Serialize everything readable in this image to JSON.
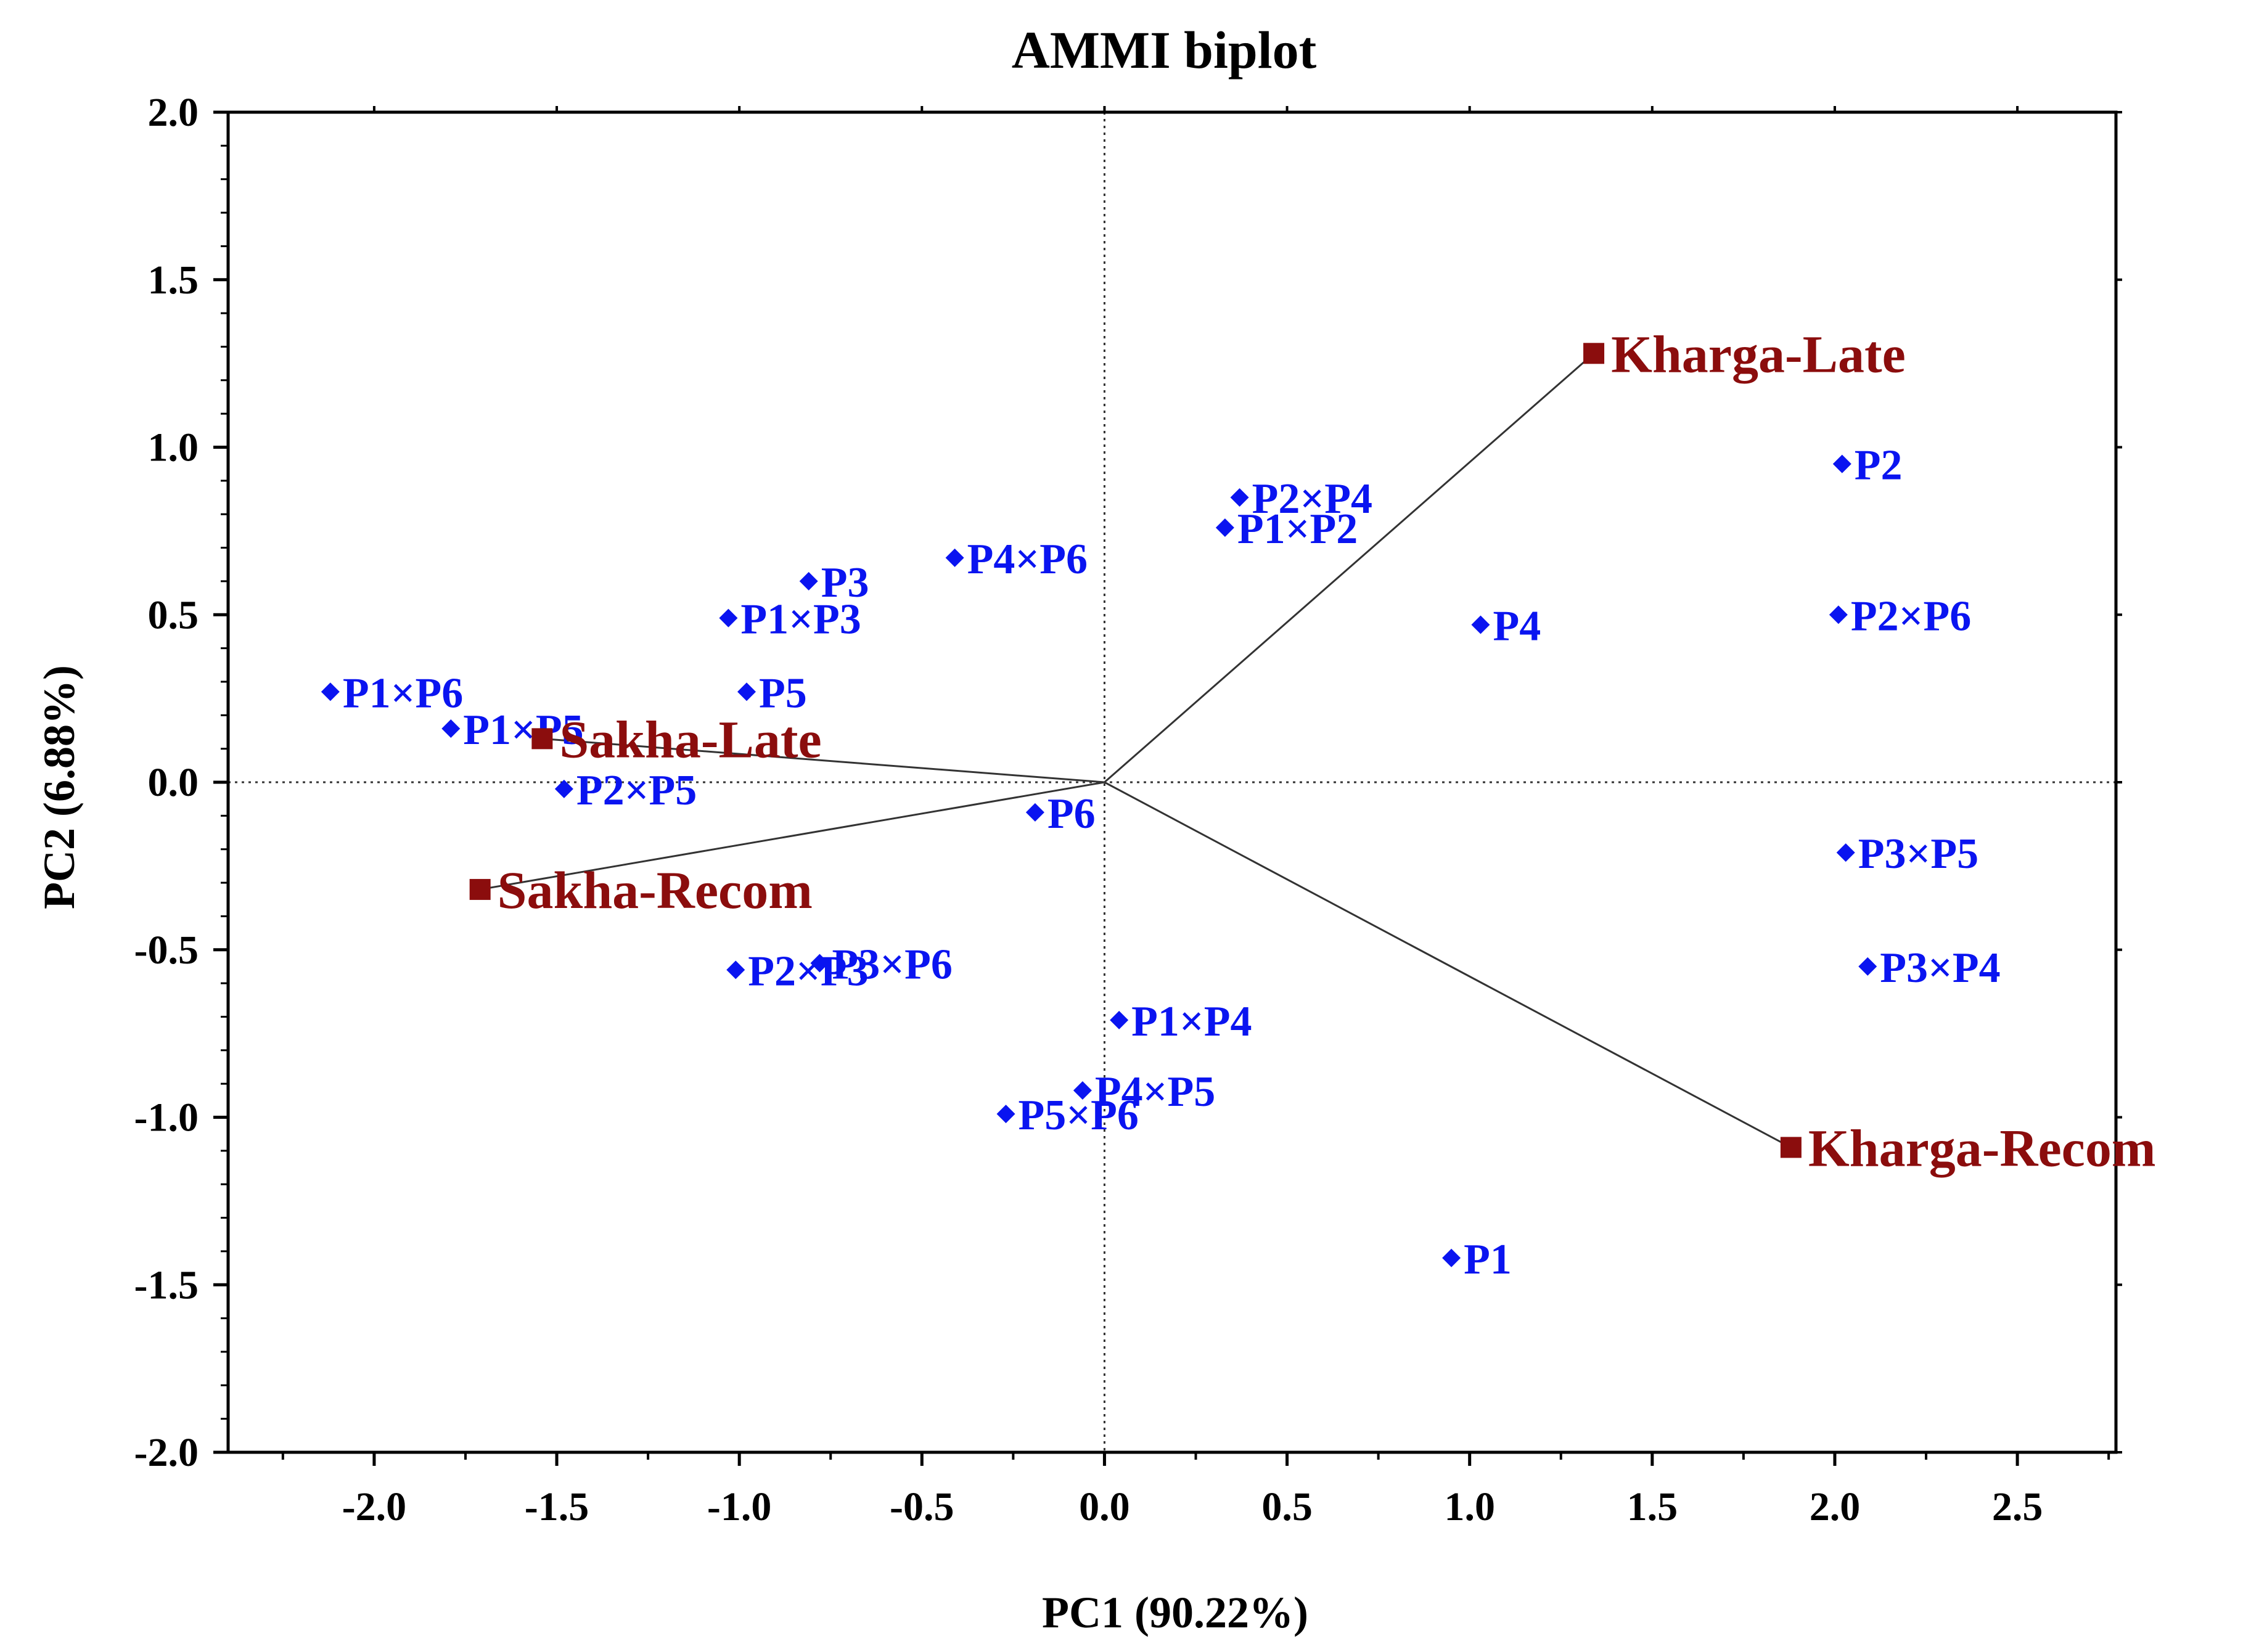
{
  "chart_data": {
    "type": "scatter",
    "title": "AMMI biplot",
    "xlabel": "PC1 (90.22%)",
    "ylabel": "PC2 (6.88%)",
    "xlim": [
      -2.4,
      2.77
    ],
    "ylim": [
      -2.0,
      2.0
    ],
    "x_ticks": [
      {
        "value": -2.0,
        "label": "-2.0"
      },
      {
        "value": -1.5,
        "label": "-1.5"
      },
      {
        "value": -1.0,
        "label": "-1.0"
      },
      {
        "value": -0.5,
        "label": "-0.5"
      },
      {
        "value": 0.0,
        "label": "0.0"
      },
      {
        "value": 0.5,
        "label": "0.5"
      },
      {
        "value": 1.0,
        "label": "1.0"
      },
      {
        "value": 1.5,
        "label": "1.5"
      },
      {
        "value": 2.0,
        "label": "2.0"
      },
      {
        "value": 2.5,
        "label": "2.5"
      }
    ],
    "y_ticks": [
      {
        "value": 2.0,
        "label": "2.0"
      },
      {
        "value": 1.5,
        "label": "1.5"
      },
      {
        "value": 1.0,
        "label": "1.0"
      },
      {
        "value": 0.5,
        "label": "0.5"
      },
      {
        "value": 0.0,
        "label": "0.0"
      },
      {
        "value": -0.5,
        "label": "-0.5"
      },
      {
        "value": -1.0,
        "label": "-1.0"
      },
      {
        "value": -1.5,
        "label": "-1.5"
      },
      {
        "value": -2.0,
        "label": "-2.0"
      }
    ],
    "reference_lines": {
      "x": 0,
      "y": 0,
      "style": "dotted"
    },
    "series": [
      {
        "name": "Genotypes",
        "marker": "diamond",
        "color": "#0a14f0",
        "points": [
          {
            "label": "P1",
            "x": 0.95,
            "y": -1.42
          },
          {
            "label": "P2",
            "x": 2.02,
            "y": 0.95
          },
          {
            "label": "P3",
            "x": -0.81,
            "y": 0.6
          },
          {
            "label": "P4",
            "x": 1.03,
            "y": 0.47
          },
          {
            "label": "P5",
            "x": -0.98,
            "y": 0.27
          },
          {
            "label": "P6",
            "x": -0.19,
            "y": -0.09
          },
          {
            "label": "P1×P2",
            "x": 0.33,
            "y": 0.76
          },
          {
            "label": "P1×P3",
            "x": -1.03,
            "y": 0.49
          },
          {
            "label": "P1×P4",
            "x": 0.04,
            "y": -0.71
          },
          {
            "label": "P1×P5",
            "x": -1.79,
            "y": 0.16
          },
          {
            "label": "P1×P6",
            "x": -2.12,
            "y": 0.27
          },
          {
            "label": "P2×P3",
            "x": -1.01,
            "y": -0.56
          },
          {
            "label": "P2×P4",
            "x": 0.37,
            "y": 0.85
          },
          {
            "label": "P2×P5",
            "x": -1.48,
            "y": -0.02
          },
          {
            "label": "P2×P6",
            "x": 2.01,
            "y": 0.5
          },
          {
            "label": "P3×P4",
            "x": 2.09,
            "y": -0.55
          },
          {
            "label": "P3×P5",
            "x": 2.03,
            "y": -0.21
          },
          {
            "label": "P3×P6",
            "x": -0.78,
            "y": -0.54
          },
          {
            "label": "P4×P5",
            "x": -0.06,
            "y": -0.92
          },
          {
            "label": "P4×P6",
            "x": -0.41,
            "y": 0.67
          },
          {
            "label": "P5×P6",
            "x": -0.27,
            "y": -0.99
          }
        ]
      },
      {
        "name": "Environments",
        "marker": "square",
        "color": "#8b0d0d",
        "vectors_from_origin": true,
        "points": [
          {
            "label": "Kharga-Late",
            "x": 1.34,
            "y": 1.28
          },
          {
            "label": "Kharga-Recom",
            "x": 1.88,
            "y": -1.09
          },
          {
            "label": "Sakha-Late",
            "x": -1.54,
            "y": 0.13
          },
          {
            "label": "Sakha-Recom",
            "x": -1.71,
            "y": -0.32
          }
        ]
      }
    ]
  }
}
